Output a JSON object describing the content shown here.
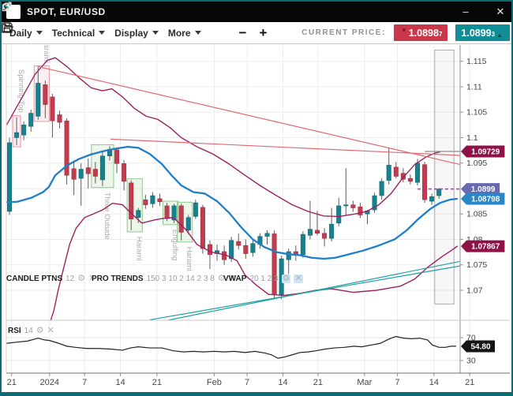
{
  "window": {
    "title": "SPOT, EUR/USD",
    "controls": {
      "minimize": "–",
      "close": "✕"
    }
  },
  "toolbar": {
    "menus": [
      {
        "label": "Daily"
      },
      {
        "label": "Technical"
      },
      {
        "label": "Display"
      },
      {
        "label": "More"
      }
    ],
    "zoom_out": "−",
    "zoom_in": "+",
    "current_price_label": "CURRENT PRICE:",
    "bid": {
      "main": "1.0898",
      "sub": "7",
      "arrow": "▼",
      "color": "#c9374a"
    },
    "ask": {
      "main": "1.0899",
      "sub": "3",
      "arrow": "▲",
      "color": "#0f8e97"
    }
  },
  "icons": {
    "gear": "⚙",
    "close": "✕"
  },
  "legends": {
    "candle": {
      "name": "CANDLE PTNS",
      "params": "12"
    },
    "trends": {
      "name": "PRO TRENDS",
      "params": "150 3 10 2 14 2 3 8"
    },
    "vwap": {
      "name": "VWAP",
      "params": "20 1 2 3"
    },
    "rsi": {
      "name": "RSI",
      "params": "14"
    }
  },
  "chart_data": {
    "type": "candlestick",
    "symbol": "EUR/USD",
    "timeframe": "Daily",
    "y_axis": {
      "range": [
        1.0641,
        1.1182
      ],
      "ticks": [
        {
          "v": 1.115,
          "t": "1.115"
        },
        {
          "v": 1.11,
          "t": "1.11"
        },
        {
          "v": 1.105,
          "t": "1.105"
        },
        {
          "v": 1.1,
          "t": "1.1"
        },
        {
          "v": 1.095,
          "t": "1.095"
        },
        {
          "v": 1.09,
          "t": ""
        },
        {
          "v": 1.085,
          "t": "1.085"
        },
        {
          "v": 1.08,
          "t": "1.08"
        },
        {
          "v": 1.075,
          "t": "1.075"
        },
        {
          "v": 1.07,
          "t": "1.07"
        }
      ]
    },
    "x_axis": {
      "labels": [
        {
          "text": "21",
          "slot": 0.3
        },
        {
          "text": "2024",
          "slot": 5.6
        },
        {
          "text": "7",
          "slot": 10.5
        },
        {
          "text": "14",
          "slot": 15.5
        },
        {
          "text": "21",
          "slot": 20.6
        },
        {
          "text": "Feb",
          "slot": 28.6
        },
        {
          "text": "7",
          "slot": 33.2
        },
        {
          "text": "14",
          "slot": 38.2
        },
        {
          "text": "21",
          "slot": 43.1
        },
        {
          "text": "Mar",
          "slot": 49.6
        },
        {
          "text": "7",
          "slot": 54.2
        },
        {
          "text": "14",
          "slot": 59.3
        },
        {
          "text": "21",
          "slot": 64.3
        }
      ]
    },
    "first_slot": -1,
    "candles": [
      [
        1.09,
        1.0907,
        1.0845,
        1.0852
      ],
      [
        1.0855,
        1.1,
        1.0848,
        1.099
      ],
      [
        1.1,
        1.104,
        1.0985,
        1.101
      ],
      [
        1.1005,
        1.1032,
        1.0995,
        1.1025
      ],
      [
        1.1022,
        1.1055,
        1.1012,
        1.1048
      ],
      [
        1.1042,
        1.1138,
        1.1035,
        1.1107
      ],
      [
        1.1104,
        1.1112,
        1.1038,
        1.1065
      ],
      [
        1.108,
        1.1086,
        1.1,
        1.1033
      ],
      [
        1.1045,
        1.1053,
        1.1018,
        1.103
      ],
      [
        1.1033,
        1.1038,
        1.0908,
        1.0926
      ],
      [
        1.0939,
        1.0955,
        1.0887,
        1.0918
      ],
      [
        1.092,
        1.095,
        1.0866,
        1.0938
      ],
      [
        1.0941,
        1.0959,
        1.09,
        1.0929
      ],
      [
        1.0938,
        1.0952,
        1.091,
        1.0924
      ],
      [
        1.0917,
        1.0972,
        1.0905,
        1.0964
      ],
      [
        1.0964,
        1.0983,
        1.0955,
        1.0977
      ],
      [
        1.0976,
        1.0981,
        1.093,
        1.0949
      ],
      [
        1.0949,
        1.0956,
        1.0896,
        1.0914
      ],
      [
        1.0911,
        1.0916,
        1.0818,
        1.084
      ],
      [
        1.0843,
        1.0862,
        1.0832,
        1.0857
      ],
      [
        1.0878,
        1.0888,
        1.086,
        1.0868
      ],
      [
        1.087,
        1.0893,
        1.0862,
        1.0886
      ],
      [
        1.088,
        1.089,
        1.0866,
        1.0874
      ],
      [
        1.0866,
        1.0872,
        1.0836,
        1.0841
      ],
      [
        1.0838,
        1.087,
        1.0832,
        1.0866
      ],
      [
        1.0866,
        1.087,
        1.0798,
        1.0814
      ],
      [
        1.0818,
        1.0848,
        1.081,
        1.0843
      ],
      [
        1.0845,
        1.0878,
        1.084,
        1.0872
      ],
      [
        1.0863,
        1.0868,
        1.0772,
        1.0782
      ],
      [
        1.079,
        1.0798,
        1.0742,
        1.077
      ],
      [
        1.0772,
        1.079,
        1.0758,
        1.0778
      ],
      [
        1.0776,
        1.0788,
        1.075,
        1.076
      ],
      [
        1.0762,
        1.0805,
        1.0756,
        1.0798
      ],
      [
        1.0796,
        1.0812,
        1.078,
        1.0788
      ],
      [
        1.0788,
        1.08,
        1.0762,
        1.0772
      ],
      [
        1.0774,
        1.0798,
        1.0766,
        1.0792
      ],
      [
        1.079,
        1.0812,
        1.0782,
        1.0806
      ],
      [
        1.0806,
        1.0818,
        1.079,
        1.0812
      ],
      [
        1.0811,
        1.0818,
        1.0685,
        1.0692
      ],
      [
        1.069,
        1.0768,
        1.0682,
        1.0762
      ],
      [
        1.076,
        1.0782,
        1.0732,
        1.0776
      ],
      [
        1.0776,
        1.0788,
        1.0758,
        1.077
      ],
      [
        1.077,
        1.0816,
        1.0764,
        1.081
      ],
      [
        1.0808,
        1.0876,
        1.08,
        1.082
      ],
      [
        1.0818,
        1.0856,
        1.0808,
        1.0812
      ],
      [
        1.0812,
        1.0822,
        1.0786,
        1.0802
      ],
      [
        1.0802,
        1.0862,
        1.0796,
        1.083
      ],
      [
        1.0832,
        1.0882,
        1.0826,
        1.0866
      ],
      [
        1.0866,
        1.094,
        1.0848,
        1.0868
      ],
      [
        1.0868,
        1.0876,
        1.0854,
        1.0862
      ],
      [
        1.0864,
        1.0872,
        1.0842,
        1.0848
      ],
      [
        1.085,
        1.0858,
        1.083,
        1.0856
      ],
      [
        1.0858,
        1.0892,
        1.0852,
        1.0886
      ],
      [
        1.0886,
        1.092,
        1.0878,
        1.0914
      ],
      [
        1.0916,
        1.098,
        1.0908,
        1.0946
      ],
      [
        1.0942,
        1.0952,
        1.092,
        1.0924
      ],
      [
        1.093,
        1.094,
        1.0912,
        1.0918
      ],
      [
        1.092,
        1.0928,
        1.0908,
        1.0914
      ],
      [
        1.0912,
        1.0958,
        1.0906,
        1.095
      ],
      [
        1.0947,
        1.0952,
        1.0872,
        1.0878
      ],
      [
        1.0875,
        1.089,
        1.0868,
        1.0884
      ],
      [
        1.0886,
        1.0901,
        1.088,
        1.0899
      ]
    ],
    "patterns": [
      {
        "label": "Spinning Top",
        "from": 1,
        "to": 1,
        "style": "pink",
        "side": "above"
      },
      {
        "label": "Harami",
        "from": 4,
        "to": 5,
        "style": "pink",
        "side": "above"
      },
      {
        "label": "Three Outside",
        "from": 12,
        "to": 14,
        "style": "green",
        "side": "below"
      },
      {
        "label": "Harami",
        "from": 17,
        "to": 18,
        "style": "green",
        "side": "below"
      },
      {
        "label": "Engulfing",
        "from": 22,
        "to": 23,
        "style": "green",
        "side": "below"
      },
      {
        "label": "Harami",
        "from": 24,
        "to": 25,
        "style": "green",
        "side": "below"
      }
    ],
    "overlays": {
      "bb_upper": [
        [
          -0.4,
          1.1025
        ],
        [
          1.4,
          1.107
        ],
        [
          3.6,
          1.1125
        ],
        [
          5.3,
          1.1152
        ],
        [
          6.4,
          1.1157
        ],
        [
          8.0,
          1.114
        ],
        [
          9.7,
          1.1118
        ],
        [
          11.4,
          1.1098
        ],
        [
          13.0,
          1.1092
        ],
        [
          14.3,
          1.1096
        ],
        [
          15.8,
          1.108
        ],
        [
          17.4,
          1.1058
        ],
        [
          19.1,
          1.1042
        ],
        [
          20.7,
          1.1036
        ],
        [
          22.4,
          1.102
        ],
        [
          24.0,
          1.1
        ],
        [
          26.2,
          1.0982
        ],
        [
          28.4,
          1.0968
        ],
        [
          30.7,
          1.0948
        ],
        [
          32.9,
          1.0926
        ],
        [
          35.1,
          1.0905
        ],
        [
          37.3,
          1.0886
        ],
        [
          39.5,
          1.0868
        ],
        [
          41.7,
          1.0855
        ],
        [
          43.9,
          1.0846
        ],
        [
          46.1,
          1.0845
        ],
        [
          48.3,
          1.085
        ],
        [
          49.9,
          1.0855
        ],
        [
          51.6,
          1.0868
        ],
        [
          53.3,
          1.089
        ],
        [
          54.9,
          1.092
        ],
        [
          56.6,
          1.0947
        ],
        [
          58.2,
          1.0962
        ],
        [
          59.5,
          1.097
        ],
        [
          60.2,
          1.0972
        ]
      ],
      "bb_lower": [
        [
          5.5,
          1.063
        ],
        [
          6.2,
          1.066
        ],
        [
          6.8,
          1.07
        ],
        [
          7.5,
          1.074
        ],
        [
          8.4,
          1.079
        ],
        [
          9.3,
          1.0822
        ],
        [
          10.5,
          1.0843
        ],
        [
          11.7,
          1.085
        ],
        [
          13.0,
          1.0858
        ],
        [
          14.4,
          1.0871
        ],
        [
          15.8,
          1.0868
        ],
        [
          17.1,
          1.085
        ],
        [
          18.5,
          1.0832
        ],
        [
          20.2,
          1.0838
        ],
        [
          21.3,
          1.0841
        ],
        [
          22.9,
          1.0843
        ],
        [
          24.6,
          1.082
        ],
        [
          26.2,
          1.079
        ],
        [
          28.2,
          1.0775
        ],
        [
          30.3,
          1.0769
        ],
        [
          31.8,
          1.0758
        ],
        [
          32.9,
          1.073
        ],
        [
          34.5,
          1.071
        ],
        [
          36.2,
          1.0692
        ],
        [
          38.4,
          1.069
        ],
        [
          40.6,
          1.0694
        ],
        [
          42.8,
          1.07
        ],
        [
          45.0,
          1.0703
        ],
        [
          48.0,
          1.0696
        ],
        [
          51.3,
          1.07
        ],
        [
          54.6,
          1.0708
        ],
        [
          56.6,
          1.0722
        ],
        [
          58.4,
          1.0745
        ],
        [
          60.4,
          1.0766
        ],
        [
          61.7,
          1.0778
        ],
        [
          62.6,
          1.0787
        ]
      ],
      "ma": [
        [
          -0.4,
          1.0873
        ],
        [
          1.1,
          1.0874
        ],
        [
          3.1,
          1.0882
        ],
        [
          4.7,
          1.0893
        ],
        [
          5.5,
          1.0903
        ],
        [
          6.4,
          1.0926
        ],
        [
          8.0,
          1.0945
        ],
        [
          9.7,
          1.0958
        ],
        [
          11.4,
          1.0967
        ],
        [
          13.0,
          1.0973
        ],
        [
          14.7,
          1.0978
        ],
        [
          16.5,
          1.0982
        ],
        [
          18.0,
          1.098
        ],
        [
          19.6,
          1.0968
        ],
        [
          21.3,
          1.0948
        ],
        [
          22.7,
          1.0925
        ],
        [
          24.0,
          1.0906
        ],
        [
          25.7,
          1.0893
        ],
        [
          27.3,
          1.089
        ],
        [
          29.0,
          1.0875
        ],
        [
          30.7,
          1.0852
        ],
        [
          32.3,
          1.0825
        ],
        [
          34.0,
          1.08
        ],
        [
          35.6,
          1.0785
        ],
        [
          37.3,
          1.0775
        ],
        [
          38.9,
          1.0771
        ],
        [
          40.6,
          1.0769
        ],
        [
          42.2,
          1.0764
        ],
        [
          43.9,
          1.0762
        ],
        [
          45.5,
          1.0764
        ],
        [
          47.2,
          1.077
        ],
        [
          49.4,
          1.0778
        ],
        [
          51.6,
          1.0788
        ],
        [
          53.8,
          1.08
        ],
        [
          55.5,
          1.0818
        ],
        [
          57.1,
          1.084
        ],
        [
          58.8,
          1.086
        ],
        [
          60.2,
          1.0872
        ],
        [
          61.5,
          1.0878
        ],
        [
          62.6,
          1.088
        ]
      ],
      "trendlines": [
        [
          3.9,
          1.114,
          63.0,
          1.0947
        ],
        [
          14.1,
          1.0997,
          63.0,
          1.0965
        ]
      ],
      "vwap": [
        [
          19.6,
          1.0642,
          63.0,
          1.0748
        ],
        [
          19.6,
          1.0634,
          63.0,
          1.0757
        ]
      ]
    },
    "levels": {
      "gray": {
        "price": 1.09729,
        "from": 58.0,
        "to": 63.2
      },
      "dashed": {
        "price": 1.0899,
        "from": 57.0,
        "to": 63.2
      }
    },
    "projection_box": {
      "from": 59.4,
      "to": 62.1,
      "price_top": 1.1172,
      "price_bottom": 1.0673
    },
    "price_tags": [
      {
        "text": "1.09729",
        "price": 1.09729,
        "color": "#8e1247"
      },
      {
        "text": "1.0899",
        "price": 1.0899,
        "color": "#6968b0"
      },
      {
        "text": "1.08798",
        "price": 1.08798,
        "color": "#2b86c8"
      },
      {
        "text": "1.07867",
        "price": 1.07867,
        "color": "#8e1247"
      }
    ],
    "rsi": {
      "ticks": [
        70,
        30
      ],
      "tag": {
        "text": "54.80",
        "value": 54.8,
        "color": "#141414"
      },
      "points": [
        [
          -0.4,
          60
        ],
        [
          0.9,
          62
        ],
        [
          2.5,
          64
        ],
        [
          4.0,
          69
        ],
        [
          4.9,
          66
        ],
        [
          5.6,
          65
        ],
        [
          6.9,
          60
        ],
        [
          8.0,
          55
        ],
        [
          9.2,
          53
        ],
        [
          10.8,
          51
        ],
        [
          12.5,
          51
        ],
        [
          14.1,
          50
        ],
        [
          15.8,
          48
        ],
        [
          16.9,
          52
        ],
        [
          18.0,
          54
        ],
        [
          19.6,
          52
        ],
        [
          21.3,
          52
        ],
        [
          22.9,
          47
        ],
        [
          24.3,
          45
        ],
        [
          25.7,
          46
        ],
        [
          27.1,
          45
        ],
        [
          28.6,
          46
        ],
        [
          30.0,
          45
        ],
        [
          31.4,
          46
        ],
        [
          32.9,
          44
        ],
        [
          34.3,
          46
        ],
        [
          35.7,
          43
        ],
        [
          36.6,
          40
        ],
        [
          37.5,
          34
        ],
        [
          38.4,
          36
        ],
        [
          39.5,
          40
        ],
        [
          40.6,
          44
        ],
        [
          41.7,
          45
        ],
        [
          42.8,
          47
        ],
        [
          44.1,
          50
        ],
        [
          45.4,
          52
        ],
        [
          46.8,
          53
        ],
        [
          48.1,
          55
        ],
        [
          49.2,
          54
        ],
        [
          50.5,
          57
        ],
        [
          51.8,
          60
        ],
        [
          53.1,
          68
        ],
        [
          54.0,
          72
        ],
        [
          55.1,
          69
        ],
        [
          56.2,
          68
        ],
        [
          57.3,
          69
        ],
        [
          58.4,
          66
        ],
        [
          59.1,
          57
        ],
        [
          60.0,
          53
        ],
        [
          60.9,
          53
        ],
        [
          61.7,
          55
        ],
        [
          62.4,
          55
        ]
      ]
    },
    "colors": {
      "bull": "#17818d",
      "bear": "#c23b4e",
      "band": "#9e2161",
      "ma": "#1e7ec8",
      "trend": "#e06a6e",
      "vwap": "#1fa0a6",
      "rsi_line": "#222222",
      "dashed_level": "#c22bc2",
      "gray_level": "#9a9a9a",
      "pattern_pink": "#e8969e",
      "pattern_green": "#8ec98a"
    }
  }
}
